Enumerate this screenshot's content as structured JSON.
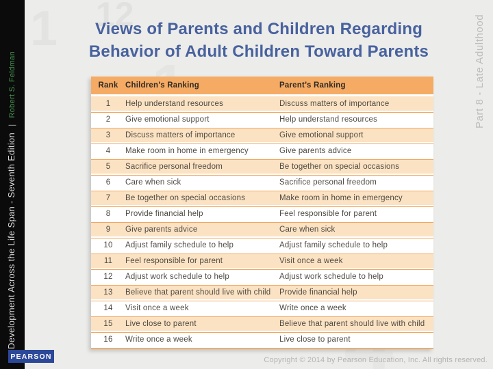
{
  "sidebar": {
    "book_title": "Development Across the Life Span - Seventh Edition",
    "separator": "|",
    "author": "Robert S. Feldman"
  },
  "logo": {
    "text": "PEARSON"
  },
  "part_label": "Part 8 - Late Adulthood",
  "title": {
    "line1": "Views of Parents and Children Regarding",
    "line2": "Behavior of Adult Children Toward Parents"
  },
  "watermarks": [
    "1",
    "12",
    "1",
    "4"
  ],
  "table": {
    "headers": {
      "rank": "Rank",
      "children": "Children’s Ranking",
      "parents": "Parent’s Ranking"
    },
    "rows": [
      {
        "rank": "1",
        "children": "Help understand resources",
        "parents": "Discuss matters of importance"
      },
      {
        "rank": "2",
        "children": "Give emotional support",
        "parents": "Help understand resources"
      },
      {
        "rank": "3",
        "children": "Discuss matters of importance",
        "parents": "Give emotional support"
      },
      {
        "rank": "4",
        "children": "Make room in home in emergency",
        "parents": "Give parents advice"
      },
      {
        "rank": "5",
        "children": "Sacrifice personal freedom",
        "parents": "Be together on special occasions"
      },
      {
        "rank": "6",
        "children": "Care when sick",
        "parents": "Sacrifice personal freedom"
      },
      {
        "rank": "7",
        "children": "Be together on special occasions",
        "parents": "Make room in home in emergency"
      },
      {
        "rank": "8",
        "children": "Provide financial help",
        "parents": "Feel responsible for parent"
      },
      {
        "rank": "9",
        "children": "Give parents advice",
        "parents": "Care when sick"
      },
      {
        "rank": "10",
        "children": "Adjust family schedule to help",
        "parents": "Adjust family schedule to help"
      },
      {
        "rank": "11",
        "children": "Feel responsible for parent",
        "parents": "Visit once a week"
      },
      {
        "rank": "12",
        "children": "Adjust work schedule to help",
        "parents": "Adjust work schedule to help"
      },
      {
        "rank": "13",
        "children": "Believe that parent should live with child",
        "parents": "Provide financial help"
      },
      {
        "rank": "14",
        "children": "Visit once a week",
        "parents": "Write once a week"
      },
      {
        "rank": "15",
        "children": "Live close to parent",
        "parents": "Believe that parent should live with child"
      },
      {
        "rank": "16",
        "children": "Write once a week",
        "parents": "Live close to parent"
      }
    ]
  },
  "footer": {
    "copyright": "Copyright © 2014 by Pearson Education, Inc. All rights reserved."
  },
  "colors": {
    "title_blue": "#48629e",
    "header_orange": "#f5ab64",
    "row_pale_orange": "#fbe2c3",
    "rule_orange": "#f1a75f",
    "pearson_blue": "#2c4899",
    "author_green": "#4a9a55",
    "sidebar_black": "#0b0b0b",
    "slide_background": "#ececea"
  }
}
